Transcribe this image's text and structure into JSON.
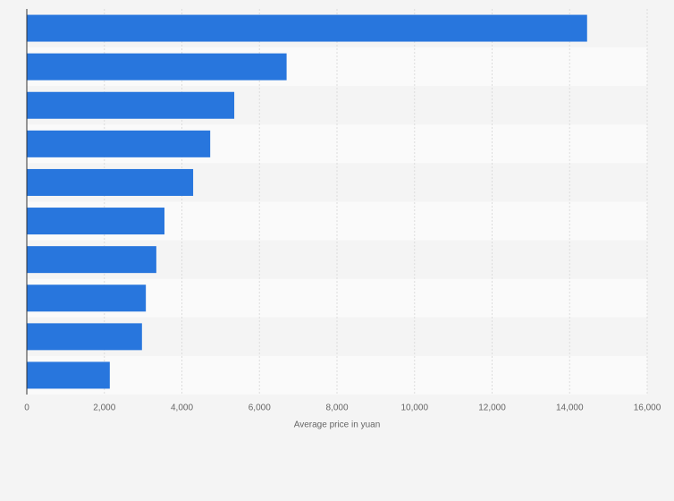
{
  "chart_data": {
    "type": "bar",
    "orientation": "horizontal",
    "x_label": "Average price in yuan",
    "categories": [
      null,
      null,
      null,
      null,
      null,
      null,
      null,
      null,
      null,
      null
    ],
    "values": [
      14450,
      6700,
      5350,
      4730,
      4290,
      3550,
      3340,
      3070,
      2970,
      2140
    ],
    "color": "#2876dd",
    "xlim": [
      0,
      16000
    ],
    "xticks": [
      0,
      {
        "value": 2000,
        "label": "2,000"
      },
      {
        "value": 4000,
        "label": "4,000"
      },
      {
        "value": 6000,
        "label": "6,000"
      },
      {
        "value": 8000,
        "label": "8,000"
      },
      {
        "value": 10000,
        "label": "10,000"
      },
      {
        "value": 12000,
        "label": "12,000"
      },
      {
        "value": 14000,
        "label": "14,000"
      },
      {
        "value": 16000,
        "label": "16,000"
      }
    ],
    "grid": true
  }
}
